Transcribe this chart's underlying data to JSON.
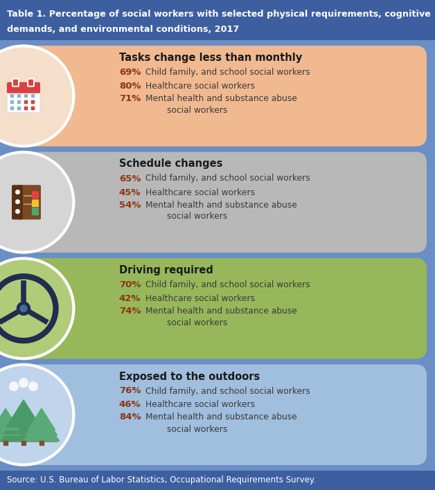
{
  "title_line1": "Table 1. Percentage of social workers with selected physical requirements, cognitive",
  "title_line2": "demands, and environmental conditions, 2017",
  "title_bg": "#3d5fa0",
  "title_color": "#ffffff",
  "bg_color": "#6b8fc4",
  "source_text": "Source: U.S. Bureau of Labor Statistics, Occupational Requirements Survey.",
  "source_bg": "#3d5fa0",
  "source_color": "#ffffff",
  "cards": [
    {
      "title": "Tasks change less than monthly",
      "bg_color": "#f0b990",
      "circle_bg": "#f5deca",
      "values": [
        "69%",
        "80%",
        "71%"
      ],
      "labels": [
        "Child family, and school social workers",
        "Healthcare social workers",
        "Mental health and substance abuse\n        social workers"
      ],
      "value_color": "#8b3510",
      "label_color": "#3a3a3a"
    },
    {
      "title": "Schedule changes",
      "bg_color": "#b8b8b8",
      "circle_bg": "#d5d5d5",
      "values": [
        "65%",
        "45%",
        "54%"
      ],
      "labels": [
        "Child family, and school social workers",
        "Healthcare social workers",
        "Mental health and substance abuse\n        social workers"
      ],
      "value_color": "#8b3510",
      "label_color": "#3a3a3a"
    },
    {
      "title": "Driving required",
      "bg_color": "#96b85a",
      "circle_bg": "#b0cc78",
      "values": [
        "70%",
        "42%",
        "74%"
      ],
      "labels": [
        "Child family, and school social workers",
        "Healthcare social workers",
        "Mental health and substance abuse\n        social workers"
      ],
      "value_color": "#8b3510",
      "label_color": "#3a3a3a"
    },
    {
      "title": "Exposed to the outdoors",
      "bg_color": "#a0bedd",
      "circle_bg": "#c0d5eb",
      "values": [
        "76%",
        "46%",
        "84%"
      ],
      "labels": [
        "Child family, and school social workers",
        "Healthcare social workers",
        "Mental health and substance abuse\n        social workers"
      ],
      "value_color": "#8b3510",
      "label_color": "#3a3a3a"
    }
  ]
}
